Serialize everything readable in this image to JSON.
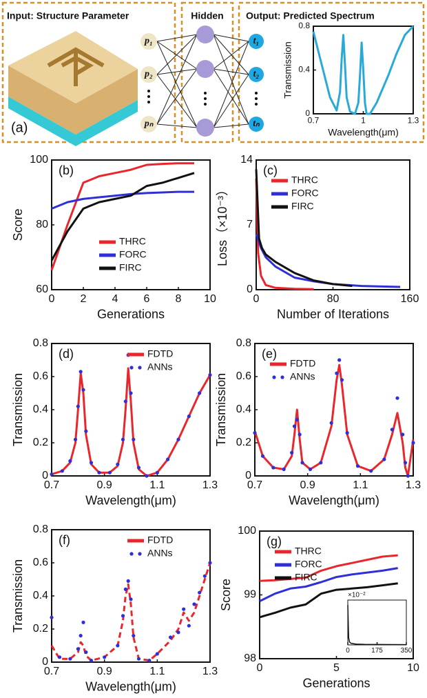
{
  "diagram": {
    "input_title": "Input: Structure Parameter",
    "hidden_title": "Hidden",
    "output_title": "Output: Predicted Spectrum",
    "label": "(a)",
    "inputs": [
      "p₁",
      "p₂",
      "pₙ"
    ],
    "outputs": [
      "t₁",
      "t₂",
      "tₙ"
    ]
  },
  "chart_data": [
    {
      "type": "line",
      "xlabel": "Wavelength(μm)",
      "ylabel": "Transmission",
      "x": [
        0.7,
        0.75,
        0.8,
        0.84,
        0.86,
        0.87,
        0.88,
        0.89,
        0.9,
        0.92,
        0.95,
        0.97,
        0.98,
        0.99,
        1.0,
        1.01,
        1.02,
        1.04,
        1.08,
        1.15,
        1.2,
        1.25,
        1.3
      ],
      "series": [
        {
          "color": "#29a9d8",
          "values": [
            0.75,
            0.45,
            0.15,
            0.03,
            0.2,
            0.5,
            0.72,
            0.45,
            0.15,
            0.02,
            0.0,
            0.1,
            0.35,
            0.65,
            0.4,
            0.1,
            0.0,
            0.0,
            0.1,
            0.35,
            0.55,
            0.72,
            0.8
          ]
        }
      ],
      "xlim": [
        0.7,
        1.3
      ],
      "xticks": [
        0.7,
        1,
        1.3
      ],
      "ylim": [
        0,
        0.8
      ],
      "yticks": [
        0,
        0.4,
        0.8
      ]
    },
    {
      "type": "line",
      "label": "(b)",
      "xlabel": "Generations",
      "ylabel": "Score",
      "legend": "center",
      "x": [
        0,
        1,
        2,
        3,
        4,
        5,
        6,
        7,
        8,
        9
      ],
      "series": [
        {
          "name": "THRC",
          "color": "#e8262b",
          "values": [
            66,
            80,
            93,
            95,
            96,
            97,
            98.5,
            98.8,
            99,
            99
          ]
        },
        {
          "name": "FORC",
          "color": "#2f2fd8",
          "values": [
            85,
            87,
            88,
            88.5,
            89,
            89.5,
            89.8,
            90,
            90.2,
            90.2
          ]
        },
        {
          "name": "FIRC",
          "color": "#111111",
          "values": [
            69,
            78,
            85,
            87,
            88,
            89,
            92,
            93,
            94.5,
            96
          ]
        }
      ],
      "xlim": [
        0,
        10
      ],
      "xticks": [
        0,
        2,
        4,
        6,
        8,
        10
      ],
      "ylim": [
        60,
        100
      ],
      "yticks": [
        60,
        80,
        100
      ]
    },
    {
      "type": "line",
      "label": "(c)",
      "xlabel": "Number of Iterations",
      "ylabel": "Loss（×10⁻³）",
      "legend": "upper left",
      "series": [
        {
          "name": "THRC",
          "color": "#e8262b",
          "x": [
            0,
            2,
            5,
            10,
            20,
            40,
            60
          ],
          "values": [
            12,
            4,
            1.5,
            0.5,
            0.2,
            0.1,
            0.05
          ]
        },
        {
          "name": "FORC",
          "color": "#2f2fd8",
          "x": [
            0,
            5,
            10,
            20,
            40,
            60,
            80,
            110,
            150
          ],
          "values": [
            6,
            4.5,
            3.5,
            2.5,
            1.3,
            0.9,
            0.6,
            0.4,
            0.3
          ]
        },
        {
          "name": "FIRC",
          "color": "#111111",
          "x": [
            0,
            3,
            6,
            10,
            20,
            40,
            60,
            80,
            100
          ],
          "values": [
            13,
            5.5,
            4.5,
            3.8,
            3,
            1.8,
            1,
            0.6,
            0.4
          ]
        }
      ],
      "xlim": [
        0,
        160
      ],
      "xticks": [
        0,
        80,
        160
      ],
      "ylim": [
        0,
        14
      ],
      "yticks": [
        0,
        7,
        14
      ]
    },
    {
      "type": "line",
      "label": "(d)",
      "xlabel": "Wavelength(μm)",
      "ylabel": "Transmission",
      "legend": "upper center",
      "x": [
        0.7,
        0.74,
        0.77,
        0.79,
        0.8,
        0.81,
        0.82,
        0.83,
        0.85,
        0.88,
        0.92,
        0.95,
        0.97,
        0.98,
        0.99,
        1.0,
        1.01,
        1.03,
        1.06,
        1.1,
        1.14,
        1.18,
        1.22,
        1.26,
        1.3
      ],
      "series": [
        {
          "name": "FDTD",
          "color": "#e8262b",
          "values": [
            0.01,
            0.03,
            0.08,
            0.2,
            0.4,
            0.62,
            0.5,
            0.25,
            0.07,
            0.02,
            0.02,
            0.06,
            0.2,
            0.4,
            0.65,
            0.45,
            0.2,
            0.04,
            0.0,
            0.02,
            0.1,
            0.22,
            0.36,
            0.5,
            0.61
          ]
        },
        {
          "name": "ANNs",
          "color": "#2f2fd8",
          "type": "scatter",
          "values": [
            0.01,
            0.03,
            0.09,
            0.22,
            0.42,
            0.63,
            0.52,
            0.27,
            0.08,
            0.02,
            0.02,
            0.07,
            0.22,
            0.45,
            0.73,
            0.5,
            0.22,
            0.05,
            0.0,
            0.02,
            0.1,
            0.22,
            0.36,
            0.5,
            0.61
          ]
        }
      ],
      "xlim": [
        0.7,
        1.3
      ],
      "xticks": [
        0.7,
        0.9,
        1.1,
        1.3
      ],
      "ylim": [
        0,
        0.8
      ],
      "yticks": [
        0,
        0.2,
        0.4,
        0.6,
        0.8
      ]
    },
    {
      "type": "line",
      "label": "(e)",
      "xlabel": "Wavelength(μm)",
      "ylabel": "Transmission",
      "legend": "upper left",
      "x": [
        0.7,
        0.73,
        0.77,
        0.81,
        0.84,
        0.85,
        0.86,
        0.87,
        0.88,
        0.91,
        0.95,
        0.99,
        1.01,
        1.02,
        1.03,
        1.05,
        1.09,
        1.14,
        1.19,
        1.22,
        1.24,
        1.26,
        1.27,
        1.28,
        1.3
      ],
      "series": [
        {
          "name": "FDTD",
          "color": "#e8262b",
          "values": [
            0.27,
            0.12,
            0.05,
            0.04,
            0.12,
            0.25,
            0.4,
            0.22,
            0.08,
            0.04,
            0.08,
            0.3,
            0.58,
            0.67,
            0.55,
            0.25,
            0.06,
            0.03,
            0.1,
            0.25,
            0.38,
            0.2,
            0.05,
            0.0,
            0.22
          ]
        },
        {
          "name": "ANNs",
          "color": "#2f2fd8",
          "type": "scatter",
          "values": [
            0.26,
            0.12,
            0.05,
            0.04,
            0.14,
            0.3,
            0.34,
            0.25,
            0.08,
            0.04,
            0.08,
            0.32,
            0.62,
            0.7,
            0.58,
            0.26,
            0.06,
            0.03,
            0.1,
            0.28,
            0.47,
            0.25,
            0.08,
            0.0,
            0.2
          ]
        }
      ],
      "xlim": [
        0.7,
        1.3
      ],
      "xticks": [
        0.7,
        0.9,
        1.1,
        1.3
      ],
      "ylim": [
        0,
        0.8
      ],
      "yticks": [
        0,
        0.2,
        0.4,
        0.6,
        0.8
      ]
    },
    {
      "type": "line",
      "label": "(f)",
      "xlabel": "Wavelength(μm)",
      "ylabel": "Transmission",
      "legend": "upper center",
      "x": [
        0.7,
        0.73,
        0.77,
        0.8,
        0.81,
        0.82,
        0.83,
        0.85,
        0.9,
        0.95,
        0.97,
        0.98,
        0.99,
        1.0,
        1.01,
        1.03,
        1.07,
        1.1,
        1.15,
        1.18,
        1.2,
        1.22,
        1.24,
        1.26,
        1.28,
        1.3
      ],
      "series": [
        {
          "name": "FDTD",
          "color": "#e8262b",
          "dash": true,
          "values": [
            0.1,
            0.02,
            0.02,
            0.06,
            0.12,
            0.1,
            0.04,
            0.01,
            0.03,
            0.1,
            0.25,
            0.4,
            0.47,
            0.35,
            0.15,
            0.02,
            0.01,
            0.05,
            0.13,
            0.2,
            0.3,
            0.25,
            0.3,
            0.4,
            0.5,
            0.6
          ]
        },
        {
          "name": "ANNs",
          "color": "#2f2fd8",
          "type": "scatter",
          "values": [
            0.27,
            0.03,
            0.02,
            0.08,
            0.16,
            0.24,
            0.06,
            0.01,
            0.03,
            0.1,
            0.28,
            0.44,
            0.49,
            0.38,
            0.16,
            0.02,
            0.01,
            0.05,
            0.15,
            0.18,
            0.32,
            0.22,
            0.35,
            0.42,
            0.52,
            0.6
          ]
        }
      ],
      "xlim": [
        0.7,
        1.3
      ],
      "xticks": [
        0.7,
        0.9,
        1.1,
        1.3
      ],
      "ylim": [
        0,
        0.8
      ],
      "yticks": [
        0,
        0.2,
        0.4,
        0.6,
        0.8
      ]
    },
    {
      "type": "line",
      "label": "(g)",
      "xlabel": "Generations",
      "ylabel": "Score",
      "legend": "upper left",
      "x": [
        0,
        1,
        2,
        3,
        4,
        5,
        6,
        7,
        8,
        9
      ],
      "series": [
        {
          "name": "THRC",
          "color": "#e8262b",
          "values": [
            99.22,
            99.23,
            99.25,
            99.27,
            99.38,
            99.45,
            99.5,
            99.55,
            99.6,
            99.62
          ]
        },
        {
          "name": "FORC",
          "color": "#2f2fd8",
          "values": [
            98.9,
            99.02,
            99.1,
            99.13,
            99.2,
            99.28,
            99.32,
            99.35,
            99.38,
            99.42
          ]
        },
        {
          "name": "FIRC",
          "color": "#111111",
          "values": [
            98.65,
            98.72,
            98.8,
            98.85,
            99.02,
            99.08,
            99.1,
            99.12,
            99.15,
            99.18
          ]
        }
      ],
      "xlim": [
        0,
        10
      ],
      "xticks": [
        0,
        5,
        10
      ],
      "ylim": [
        98,
        100
      ],
      "yticks": [
        98,
        99,
        100
      ]
    },
    {
      "type": "line",
      "scale_note": "×10⁻²",
      "series": [
        {
          "color": "#111111",
          "x": [
            0,
            5,
            10,
            20,
            50,
            100,
            175,
            250,
            350
          ],
          "values": [
            8,
            1.5,
            0.6,
            0.3,
            0.15,
            0.1,
            0.08,
            0.07,
            0.06
          ]
        }
      ],
      "xlim": [
        0,
        350
      ],
      "xticks": [
        0,
        175,
        350
      ],
      "ylim": [
        0,
        9
      ]
    }
  ]
}
